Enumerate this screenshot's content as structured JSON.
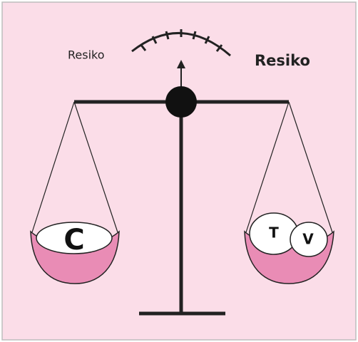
{
  "labels": {
    "left": "Resiko",
    "right": "Resiko"
  },
  "left_pan": {
    "items": [
      "C"
    ]
  },
  "right_pan": {
    "items": [
      "T",
      "V"
    ]
  }
}
